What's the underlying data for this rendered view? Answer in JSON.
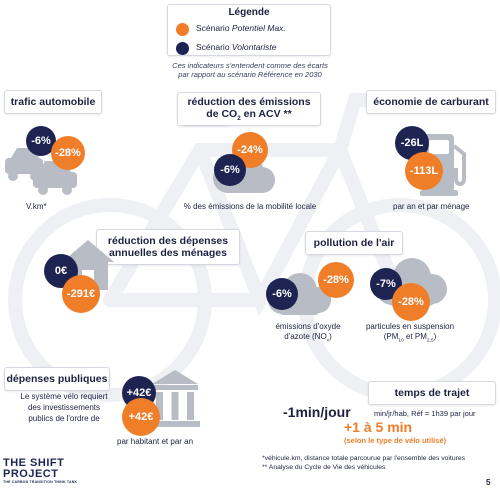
{
  "legend": {
    "title": "Légende",
    "items": [
      {
        "prefix": "Scénario ",
        "name": "Potentiel Max.",
        "color": "#f07d28"
      },
      {
        "prefix": "Scénario ",
        "name": "Volontariste",
        "color": "#1d2451"
      }
    ],
    "note_line1": "Ces indicateurs s'entendent comme des écarts",
    "note_line2": "par rapport au scénario Référence en 2030"
  },
  "trafic": {
    "title": "trafic automobile",
    "navy": "-6%",
    "orange": "-28%",
    "unit": "V.km*"
  },
  "emissions": {
    "title_line1": "réduction des émissions",
    "title_co": "de CO",
    "title_sub": "2",
    "title_rest": " en ACV **",
    "navy": "-6%",
    "orange": "-24%",
    "unit": "% des émissions de la mobilité locale"
  },
  "carburant": {
    "title": "économie de carburant",
    "navy": "-26L",
    "orange": "-113L",
    "unit": "par an et par ménage"
  },
  "depenses_menages": {
    "title_line1": "réduction des dépenses",
    "title_line2": "annuelles des ménages",
    "navy": "0€",
    "orange": "-291€"
  },
  "pollution": {
    "title": "pollution de l'air",
    "nox": {
      "navy": "-6%",
      "orange": "-28%",
      "label_line1": "émissions d'oxyde",
      "label_pre": "d'azote (NO",
      "label_sub": "x",
      "label_post": ")"
    },
    "pm": {
      "navy": "-7%",
      "orange": "-28%",
      "label_line1": "particules en suspension",
      "label_pre": "(PM",
      "label_sub1": "10",
      "label_mid": " et PM",
      "label_sub2": "2,5",
      "label_post": ")"
    }
  },
  "depenses_publiques": {
    "title": "dépenses publiques",
    "text_line1": "Le système vélo requiert",
    "text_line2": "des investissements",
    "text_line3": "publics de l'ordre de",
    "navy": "+42€",
    "orange": "+42€",
    "unit": "par habitant et par an"
  },
  "temps": {
    "title": "temps de trajet",
    "navy_value": "-1min/jour",
    "navy_detail": "min/jr/hab, Réf = 1h39 par jour",
    "orange_value": "+1 à 5 min",
    "orange_detail": "(selon le type de vélo utilisé)"
  },
  "footnotes": {
    "line1": "*véhicule.km, distance totale parcourue par l'ensemble des voitures",
    "line2": "** Analyse du Cycle de Vie des véhicules"
  },
  "logo": {
    "line1": "THE SHIFT",
    "line2": "PROJECT",
    "tagline": "THE CARBON TRANSITION THINK TANK"
  },
  "page_number": "5"
}
